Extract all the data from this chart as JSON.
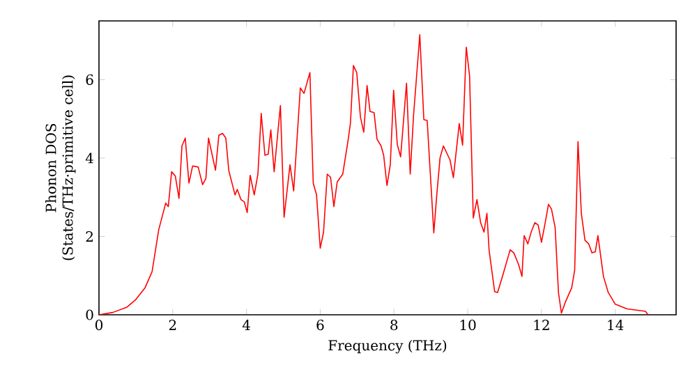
{
  "chart_data": {
    "type": "line",
    "xlabel": "Frequency (THz)",
    "ylabel": "Phonon DOS (States/THz·primitive cell)",
    "xlim": [
      0,
      15.65
    ],
    "ylim": [
      0,
      7.5
    ],
    "xticks": [
      0,
      2,
      4,
      6,
      8,
      10,
      12,
      14
    ],
    "yticks": [
      0,
      2,
      4,
      6
    ],
    "grid": false,
    "marker": "none",
    "line_style": "solid",
    "x": [
      0,
      0.375,
      0.75,
      1.0,
      1.25,
      1.44,
      1.62,
      1.81,
      1.88,
      1.97,
      2.07,
      2.17,
      2.25,
      2.34,
      2.44,
      2.54,
      2.69,
      2.81,
      2.9,
      2.97,
      3.16,
      3.25,
      3.35,
      3.44,
      3.52,
      3.69,
      3.75,
      3.85,
      3.94,
      4.02,
      4.1,
      4.21,
      4.31,
      4.4,
      4.5,
      4.59,
      4.66,
      4.75,
      4.92,
      5.02,
      5.18,
      5.28,
      5.46,
      5.56,
      5.72,
      5.81,
      5.9,
      6.0,
      6.09,
      6.19,
      6.28,
      6.37,
      6.46,
      6.61,
      6.76,
      6.82,
      6.9,
      6.99,
      7.09,
      7.18,
      7.27,
      7.35,
      7.46,
      7.54,
      7.65,
      7.72,
      7.81,
      7.9,
      7.99,
      8.09,
      8.18,
      8.34,
      8.44,
      8.53,
      8.7,
      8.81,
      8.9,
      9.08,
      9.16,
      9.25,
      9.34,
      9.52,
      9.61,
      9.77,
      9.86,
      9.96,
      10.05,
      10.15,
      10.25,
      10.35,
      10.44,
      10.52,
      10.58,
      10.73,
      10.81,
      10.96,
      11.15,
      11.25,
      11.38,
      11.47,
      11.53,
      11.63,
      11.72,
      11.82,
      11.91,
      12.0,
      12.1,
      12.19,
      12.27,
      12.37,
      12.46,
      12.54,
      12.65,
      12.82,
      12.9,
      12.99,
      13.08,
      13.18,
      13.28,
      13.37,
      13.46,
      13.53,
      13.68,
      13.81,
      14.0,
      14.32,
      14.82,
      14.89
    ],
    "series": [
      {
        "color": "#ff0000",
        "values": [
          0,
          0.06,
          0.19,
          0.39,
          0.69,
          1.1,
          2.17,
          2.85,
          2.76,
          3.65,
          3.54,
          2.97,
          4.31,
          4.51,
          3.36,
          3.8,
          3.77,
          3.32,
          3.48,
          4.51,
          3.69,
          4.58,
          4.63,
          4.51,
          3.68,
          3.06,
          3.2,
          2.94,
          2.88,
          2.61,
          3.56,
          3.06,
          3.59,
          5.14,
          4.07,
          4.1,
          4.72,
          3.65,
          5.34,
          2.49,
          3.83,
          3.16,
          5.79,
          5.65,
          6.18,
          3.36,
          3.06,
          1.7,
          2.11,
          3.59,
          3.51,
          2.76,
          3.39,
          3.59,
          4.48,
          4.9,
          6.36,
          6.18,
          5.05,
          4.66,
          5.85,
          5.19,
          5.16,
          4.48,
          4.31,
          4.07,
          3.3,
          3.83,
          5.73,
          4.34,
          4.03,
          5.91,
          3.59,
          5.08,
          7.15,
          4.98,
          4.96,
          2.09,
          3.06,
          4.01,
          4.31,
          3.95,
          3.5,
          4.88,
          4.33,
          6.83,
          6.09,
          2.47,
          2.94,
          2.35,
          2.11,
          2.59,
          1.64,
          0.59,
          0.57,
          1.04,
          1.66,
          1.58,
          1.28,
          0.98,
          2.02,
          1.81,
          2.11,
          2.35,
          2.29,
          1.85,
          2.35,
          2.82,
          2.7,
          2.23,
          0.57,
          0.04,
          0.33,
          0.69,
          1.14,
          4.42,
          2.59,
          1.9,
          1.81,
          1.58,
          1.61,
          2.02,
          0.98,
          0.57,
          0.27,
          0.15,
          0.09,
          0
        ]
      }
    ]
  }
}
